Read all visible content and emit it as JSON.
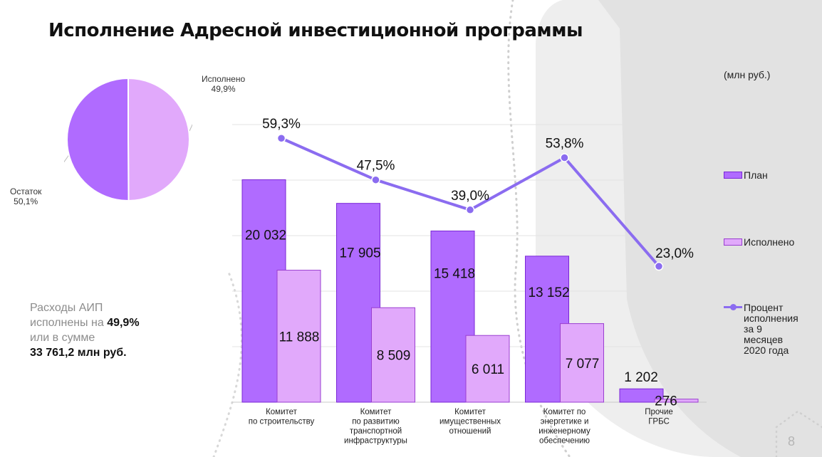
{
  "title": "Исполнение Адресной инвестиционной программы",
  "units": "(млн руб.)",
  "page_number": "8",
  "pie": {
    "slices": [
      {
        "name": "Исполнено",
        "value": 49.9,
        "label": "49,9%",
        "color": "#e1a9fb"
      },
      {
        "name": "Остаток",
        "value": 50.1,
        "label": "50,1%",
        "color": "#b06bff"
      }
    ]
  },
  "summary": {
    "line1": "Расходы АИП",
    "line2_prefix": "исполнены на ",
    "line2_value": "49,9%",
    "line3": "или в сумме",
    "line4": "33 761,2 млн руб."
  },
  "legend": {
    "plan": "План",
    "done": "Исполнено",
    "percent_lines": [
      "Процент",
      "исполнения",
      "за 9",
      "месяцев",
      "2020 года"
    ]
  },
  "colors": {
    "plan": "#b06bff",
    "plan_border": "#7a27d6",
    "done": "#e1a9fb",
    "done_border": "#9a3fd0",
    "line": "#8b6cf0"
  },
  "chart_data": {
    "type": "bar",
    "categories": [
      [
        "Комитет",
        "по строительству"
      ],
      [
        "Комитет",
        "по развитию",
        "транспортной",
        "инфраструктуры"
      ],
      [
        "Комитет",
        "имущественных",
        "отношений"
      ],
      [
        "Комитет по",
        "энергетике и",
        "инженерному",
        "обеспечению"
      ],
      [
        "Прочие",
        "ГРБС"
      ]
    ],
    "series": [
      {
        "name": "План",
        "values": [
          20032,
          17905,
          15418,
          13152,
          1202
        ],
        "labels": [
          "20 032",
          "17 905",
          "15 418",
          "13 152",
          "1 202"
        ]
      },
      {
        "name": "Исполнено",
        "values": [
          11888,
          8509,
          6011,
          7077,
          276
        ],
        "labels": [
          "11 888",
          "8 509",
          "6 011",
          "7 077",
          "276"
        ]
      }
    ],
    "percent_series": {
      "name": "Процент исполнения за 9 месяцев 2020 года",
      "values": [
        59.3,
        47.5,
        39.0,
        53.8,
        23.0
      ],
      "labels": [
        "59,3%",
        "47,5%",
        "39,0%",
        "53,8%",
        "23,0%"
      ]
    },
    "ylim": [
      0,
      25000
    ],
    "grid": true,
    "legend_position": "right"
  }
}
